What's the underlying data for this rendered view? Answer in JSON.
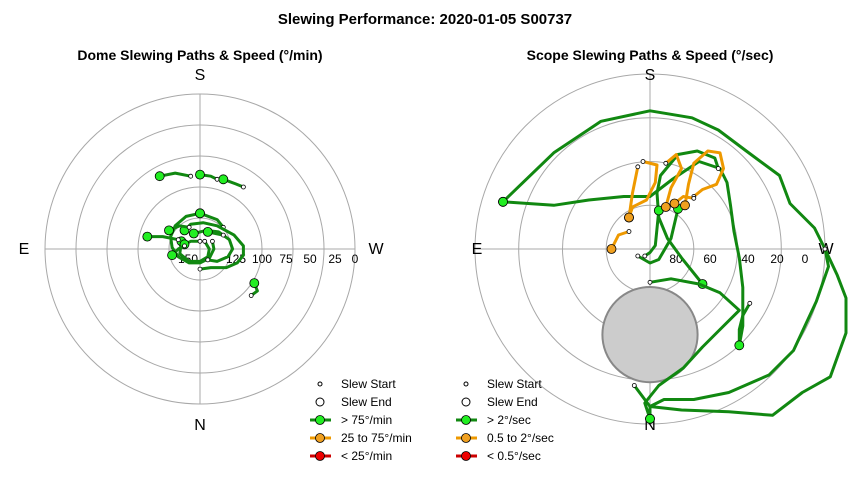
{
  "figure": {
    "title": "Slewing Performance: 2020-01-05 S00737"
  },
  "chart_data": [
    {
      "type": "scatter",
      "title": "Dome Slewing Paths & Speed (°/min)",
      "projection": "polar",
      "cardinals": {
        "top": "S",
        "left": "E",
        "right": "W",
        "bottom": "N"
      },
      "radial_ticks": [
        "150",
        "125",
        "100",
        "75",
        "50",
        "25",
        "0"
      ],
      "legend_position": "bottom-right",
      "legend": {
        "slew_start": "Slew Start",
        "slew_end": "Slew End",
        "fast": "> 75°/min",
        "medium": "25 to 75°/min",
        "slow": "< 25°/min"
      },
      "colors": {
        "fast": "#118811",
        "medium": "#ee9900",
        "slow": "#cc0000",
        "fast_marker": "#22ee22",
        "medium_marker": "#f0a020",
        "slow_marker": "#ee0000"
      },
      "slews": [
        {
          "speed": "fast",
          "path": [
            [
              0.0,
              0.23
            ],
            [
              0.11,
              0.19
            ],
            [
              0.15,
              0.14
            ]
          ]
        },
        {
          "speed": "fast",
          "path": [
            [
              0.0,
              0.23
            ],
            [
              -0.09,
              0.21
            ],
            [
              -0.16,
              0.15
            ],
            [
              -0.19,
              0.08
            ],
            [
              -0.18,
              0.01
            ],
            [
              -0.14,
              -0.05
            ],
            [
              -0.07,
              -0.09
            ],
            [
              0.0,
              -0.09
            ],
            [
              0.06,
              -0.06
            ],
            [
              0.09,
              0.0
            ],
            [
              0.08,
              0.05
            ]
          ]
        },
        {
          "speed": "fast",
          "path": [
            [
              -0.12,
              0.05
            ],
            [
              -0.13,
              -0.03
            ],
            [
              -0.07,
              -0.08
            ],
            [
              0.0,
              -0.08
            ],
            [
              0.05,
              -0.05
            ],
            [
              0.06,
              0.0
            ],
            [
              0.03,
              0.05
            ]
          ]
        },
        {
          "speed": "fast",
          "path": [
            [
              -0.1,
              0.12
            ],
            [
              -0.06,
              0.16
            ],
            [
              0.02,
              0.17
            ],
            [
              0.11,
              0.15
            ],
            [
              0.22,
              0.09
            ],
            [
              0.28,
              0.02
            ],
            [
              0.28,
              -0.04
            ],
            [
              0.24,
              -0.09
            ],
            [
              0.17,
              -0.12
            ],
            [
              0.07,
              -0.12
            ],
            [
              0.0,
              -0.13
            ]
          ]
        },
        {
          "speed": "fast",
          "path": [
            [
              -0.04,
              0.1
            ],
            [
              0.04,
              0.12
            ],
            [
              0.12,
              0.11
            ],
            [
              0.19,
              0.06
            ],
            [
              0.21,
              0.0
            ],
            [
              0.18,
              -0.05
            ],
            [
              0.11,
              -0.08
            ],
            [
              0.05,
              -0.07
            ]
          ]
        },
        {
          "speed": "fast",
          "path": [
            [
              -0.1,
              0.03
            ],
            [
              -0.06,
              0.05
            ],
            [
              0.0,
              0.05
            ]
          ]
        },
        {
          "speed": "fast",
          "path": [
            [
              0.05,
              0.11
            ],
            [
              0.1,
              0.1
            ],
            [
              0.15,
              0.09
            ]
          ]
        },
        {
          "speed": "fast",
          "path": [
            [
              -0.26,
              0.47
            ],
            [
              -0.16,
              0.49
            ],
            [
              -0.06,
              0.47
            ]
          ]
        },
        {
          "speed": "fast",
          "path": [
            [
              0.0,
              0.48
            ],
            [
              0.07,
              0.47
            ],
            [
              0.11,
              0.45
            ]
          ]
        },
        {
          "speed": "fast",
          "path": [
            [
              0.15,
              0.45
            ],
            [
              0.23,
              0.42
            ],
            [
              0.28,
              0.4
            ]
          ]
        },
        {
          "speed": "fast",
          "path": [
            [
              0.35,
              -0.22
            ],
            [
              0.37,
              -0.27
            ],
            [
              0.33,
              -0.3
            ]
          ]
        },
        {
          "speed": "fast",
          "path": [
            [
              -0.34,
              0.08
            ],
            [
              -0.24,
              0.08
            ],
            [
              -0.14,
              0.06
            ]
          ]
        },
        {
          "speed": "fast",
          "path": [
            [
              -0.18,
              -0.04
            ],
            [
              -0.14,
              0.0
            ],
            [
              -0.1,
              0.02
            ]
          ]
        },
        {
          "speed": "fast",
          "path": [
            [
              -0.2,
              0.12
            ],
            [
              -0.13,
              0.15
            ],
            [
              -0.07,
              0.14
            ]
          ]
        }
      ]
    },
    {
      "type": "scatter",
      "title": "Scope Slewing Paths & Speed (°/sec)",
      "projection": "polar",
      "cardinals": {
        "top": "S",
        "left": "E",
        "right": "W",
        "bottom": "N"
      },
      "radial_ticks": [
        "80",
        "60",
        "40",
        "20",
        "0"
      ],
      "legend_position": "bottom-right",
      "legend": {
        "slew_start": "Slew Start",
        "slew_end": "Slew End",
        "fast": "> 2°/sec",
        "medium": "0.5 to 2°/sec",
        "slow": "< 0.5°/sec"
      },
      "colors": {
        "fast": "#118811",
        "medium": "#ee9900",
        "slow": "#cc0000",
        "fast_marker": "#22ee22",
        "medium_marker": "#f0a020",
        "slow_marker": "#ee0000",
        "exclusion": "#cccccc"
      },
      "exclusion_zone": {
        "center_alt": 46,
        "center_az": 0,
        "radius_deg": 12
      },
      "slews": [
        {
          "speed": "fast",
          "path": [
            [
              -0.84,
              0.27
            ],
            [
              -0.55,
              0.55
            ],
            [
              -0.28,
              0.73
            ],
            [
              0.0,
              0.79
            ],
            [
              0.24,
              0.75
            ],
            [
              0.39,
              0.68
            ],
            [
              0.55,
              0.56
            ],
            [
              0.74,
              0.42
            ],
            [
              0.8,
              0.26
            ],
            [
              0.94,
              0.12
            ],
            [
              1.0,
              0.0
            ],
            [
              1.07,
              -0.15
            ],
            [
              1.12,
              -0.28
            ],
            [
              1.12,
              -0.48
            ],
            [
              1.03,
              -0.73
            ],
            [
              0.87,
              -0.82
            ],
            [
              0.7,
              -0.95
            ],
            [
              0.45,
              -0.93
            ],
            [
              0.18,
              -0.92
            ],
            [
              0.0,
              -0.9
            ],
            [
              -0.09,
              -0.78
            ]
          ]
        },
        {
          "speed": "fast",
          "path": [
            [
              -0.84,
              0.27
            ],
            [
              -0.55,
              0.25
            ],
            [
              -0.35,
              0.28
            ],
            [
              -0.15,
              0.3
            ],
            [
              0.0,
              0.3
            ],
            [
              0.13,
              0.4
            ],
            [
              0.28,
              0.5
            ],
            [
              0.4,
              0.46
            ],
            [
              0.44,
              0.38
            ],
            [
              0.46,
              0.25
            ],
            [
              0.48,
              0.1
            ],
            [
              0.51,
              -0.05
            ],
            [
              0.53,
              -0.22
            ],
            [
              0.53,
              -0.44
            ],
            [
              0.51,
              -0.55
            ]
          ]
        },
        {
          "speed": "fast",
          "path": [
            [
              0.51,
              -0.55
            ],
            [
              0.51,
              -0.46
            ],
            [
              0.53,
              -0.38
            ],
            [
              0.57,
              -0.31
            ]
          ]
        },
        {
          "speed": "fast",
          "path": [
            [
              0.3,
              -0.2
            ],
            [
              0.18,
              -0.05
            ],
            [
              0.1,
              0.06
            ],
            [
              0.05,
              0.18
            ],
            [
              0.04,
              0.32
            ],
            [
              0.06,
              0.42
            ],
            [
              0.16,
              0.54
            ],
            [
              0.27,
              0.56
            ],
            [
              0.37,
              0.52
            ],
            [
              0.39,
              0.46
            ]
          ]
        },
        {
          "speed": "fast",
          "path": [
            [
              0.0,
              -0.97
            ],
            [
              0.0,
              -0.9
            ],
            [
              0.08,
              -0.86
            ],
            [
              0.25,
              -0.86
            ],
            [
              0.45,
              -0.82
            ],
            [
              0.68,
              -0.72
            ],
            [
              0.82,
              -0.58
            ],
            [
              0.95,
              -0.3
            ],
            [
              1.02,
              -0.1
            ],
            [
              1.0,
              0.0
            ]
          ]
        },
        {
          "speed": "fast",
          "path": [
            [
              0.0,
              -0.97
            ],
            [
              -0.03,
              -0.88
            ],
            [
              0.05,
              -0.78
            ],
            [
              0.19,
              -0.68
            ],
            [
              0.3,
              -0.56
            ],
            [
              0.4,
              -0.46
            ],
            [
              0.51,
              -0.35
            ],
            [
              0.4,
              -0.25
            ],
            [
              0.28,
              -0.2
            ],
            [
              0.12,
              -0.17
            ],
            [
              0.0,
              -0.19
            ]
          ]
        },
        {
          "speed": "fast",
          "path": [
            [
              0.16,
              0.23
            ],
            [
              0.12,
              0.06
            ],
            [
              0.05,
              -0.06
            ],
            [
              0.0,
              -0.08
            ],
            [
              -0.07,
              -0.04
            ]
          ]
        },
        {
          "speed": "fast",
          "path": [
            [
              0.05,
              0.22
            ],
            [
              0.03,
              0.02
            ],
            [
              0.0,
              -0.02
            ],
            [
              -0.03,
              -0.04
            ]
          ]
        },
        {
          "speed": "medium",
          "path": [
            [
              -0.12,
              0.18
            ],
            [
              -0.1,
              0.32
            ],
            [
              -0.07,
              0.47
            ]
          ]
        },
        {
          "speed": "medium",
          "path": [
            [
              -0.12,
              0.18
            ],
            [
              -0.1,
              0.24
            ],
            [
              -0.02,
              0.28
            ],
            [
              0.03,
              0.38
            ],
            [
              0.04,
              0.48
            ],
            [
              -0.04,
              0.5
            ]
          ]
        },
        {
          "speed": "medium",
          "path": [
            [
              0.2,
              0.25
            ],
            [
              0.22,
              0.37
            ],
            [
              0.25,
              0.49
            ],
            [
              0.33,
              0.56
            ],
            [
              0.4,
              0.55
            ],
            [
              0.42,
              0.46
            ],
            [
              0.38,
              0.37
            ],
            [
              0.3,
              0.34
            ],
            [
              0.25,
              0.3
            ]
          ]
        },
        {
          "speed": "medium",
          "path": [
            [
              -0.22,
              0.0
            ],
            [
              -0.18,
              0.08
            ],
            [
              -0.12,
              0.1
            ]
          ]
        },
        {
          "speed": "medium",
          "path": [
            [
              0.09,
              0.24
            ],
            [
              0.12,
              0.35
            ],
            [
              0.18,
              0.46
            ],
            [
              0.15,
              0.54
            ],
            [
              0.09,
              0.49
            ]
          ]
        },
        {
          "speed": "medium",
          "path": [
            [
              0.14,
              0.26
            ],
            [
              0.19,
              0.3
            ],
            [
              0.25,
              0.29
            ]
          ]
        }
      ]
    }
  ]
}
